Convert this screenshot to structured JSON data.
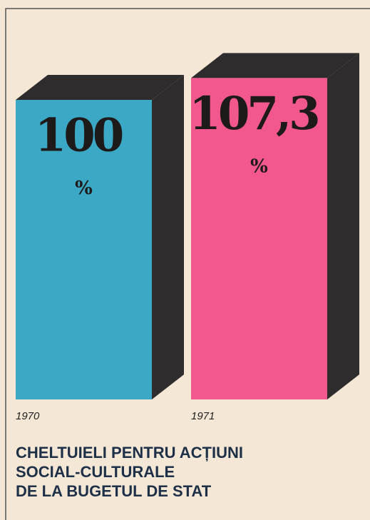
{
  "chart_data": {
    "type": "bar3d",
    "title": [
      "CHELTUIELI PENTRU ACȚIUNI",
      "SOCIAL-CULTURALE",
      "DE LA BUGETUL DE STAT"
    ],
    "categories": [
      "1970",
      "1971"
    ],
    "values": [
      100,
      107.3
    ],
    "value_labels": [
      "100",
      "107,3"
    ],
    "unit": "%",
    "colors": [
      "#3ba9c6",
      "#f2588e"
    ],
    "shadow_color": "#2e2c2c"
  }
}
